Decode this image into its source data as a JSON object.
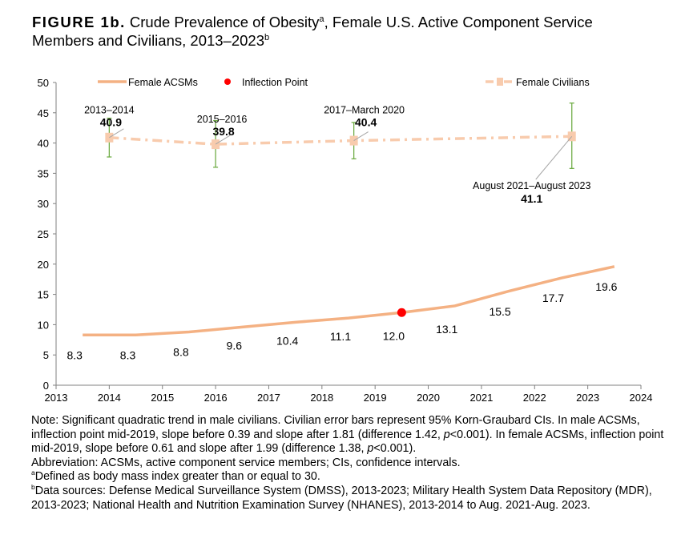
{
  "title": {
    "label": "FIGURE 1b.",
    "text1": " Crude Prevalence of Obesity",
    "sup1": "a",
    "text2": ", Female U.S. Active Component Service Members and Civilians, 2013–2023",
    "sup2": "b"
  },
  "chart_data": {
    "type": "line",
    "xlim": [
      2013,
      2024
    ],
    "ylim": [
      0,
      50
    ],
    "xticks": [
      "2013",
      "2014",
      "2015",
      "2016",
      "2017",
      "2018",
      "2019",
      "2020",
      "2021",
      "2022",
      "2023",
      "2024"
    ],
    "yticks": [
      "0",
      "5",
      "10",
      "15",
      "20",
      "25",
      "30",
      "35",
      "40",
      "45",
      "50"
    ],
    "legend_position": "top",
    "grid": false,
    "series": [
      {
        "name": "Female ACSMs",
        "color": "#f4b183",
        "style": "solid",
        "x": [
          2013.5,
          2014.5,
          2015.5,
          2016.5,
          2017.5,
          2018.5,
          2019.5,
          2020.5,
          2021.5,
          2022.5,
          2023.5
        ],
        "values": [
          8.3,
          8.3,
          8.8,
          9.6,
          10.4,
          11.1,
          12.0,
          13.1,
          15.5,
          17.7,
          19.6
        ],
        "labels": [
          "8.3",
          "8.3",
          "8.8",
          "9.6",
          "10.4",
          "11.1",
          "12.0",
          "13.1",
          "15.5",
          "17.7",
          "19.6"
        ]
      },
      {
        "name": "Inflection Point",
        "color": "#ff0000",
        "style": "marker",
        "x": [
          2019.5
        ],
        "values": [
          12.0
        ]
      },
      {
        "name": "Female Civilians",
        "color": "#f8cbad",
        "style": "dash-dot",
        "x": [
          2014,
          2016,
          2018.6,
          2022.7
        ],
        "values": [
          40.9,
          39.8,
          40.4,
          41.1
        ],
        "ci_low": [
          37.7,
          36.0,
          37.4,
          35.8
        ],
        "ci_high": [
          44.1,
          43.7,
          43.4,
          46.6
        ],
        "periods": [
          "2013–2014",
          "2015–2016",
          "2017–March 2020",
          "August 2021–August 2023"
        ],
        "labels": [
          "40.9",
          "39.8",
          "40.4",
          "41.1"
        ]
      }
    ],
    "errorbar_color": "#70ad47"
  },
  "notes": {
    "n1a": "Note: Significant quadratic trend in male civilians. Civilian error bars represent 95% Korn-Graubard CIs. In male ACSMs, inflection point mid-2019, slope before 0.39 and slope after 1.81 (difference 1.42, ",
    "p": "p",
    "n1b": "<0.001). In female ACSMs, inflection point mid-2019, slope before 0.61 and slope after 1.99 (difference 1.38, ",
    "n1c": "<0.001).",
    "abbrev": "Abbreviation: ACSMs, active component service members; CIs, confidence intervals.",
    "fa_mark": "a",
    "fa": "Defined as body mass index greater than or equal to 30.",
    "fb_mark": "b",
    "fb": "Data sources: Defense Medical Surveillance System (DMSS), 2013-2023; Military Health System Data Repository (MDR), 2013-2023; National Health and Nutrition Examination Survey (NHANES), 2013-2014 to Aug. 2021-Aug. 2023."
  }
}
